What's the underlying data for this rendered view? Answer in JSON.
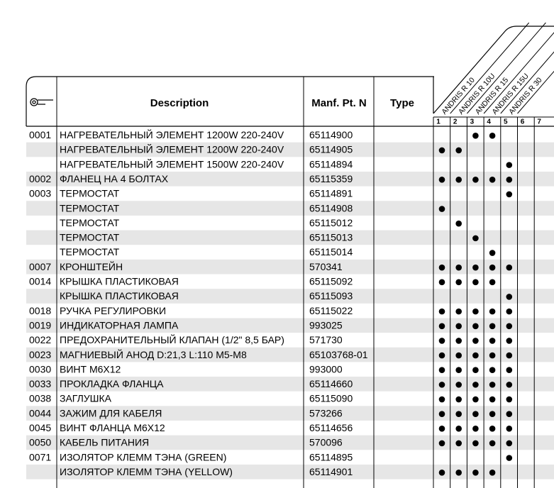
{
  "header": {
    "description": "Description",
    "part_no": "Manf. Pt. N",
    "type": "Type",
    "models": [
      "ANDRIS R 10",
      "ANDRIS R 10U",
      "ANDRIS R 15",
      "ANDRIS R 15U",
      "ANDRIS R 30"
    ],
    "columns": [
      "1",
      "2",
      "3",
      "4",
      "5",
      "6",
      "7"
    ]
  },
  "rows": [
    {
      "code": "0001",
      "description": "НАГРЕВАТЕЛЬНЫЙ ЭЛЕМЕНТ 1200W 220-240V",
      "part_no": "65114900",
      "fits": [
        false,
        false,
        true,
        true,
        false,
        false,
        false
      ]
    },
    {
      "description": "НАГРЕВАТЕЛЬНЫЙ ЭЛЕМЕНТ 1200W 220-240V",
      "part_no": "65114905",
      "fits": [
        true,
        true,
        false,
        false,
        false,
        false,
        false
      ]
    },
    {
      "description": "НАГРЕВАТЕЛЬНЫЙ ЭЛЕМЕНТ 1500W 220-240V",
      "part_no": "65114894",
      "fits": [
        false,
        false,
        false,
        false,
        true,
        false,
        false
      ]
    },
    {
      "code": "0002",
      "description": "ФЛАНЕЦ НА 4 БОЛТАХ",
      "part_no": "65115359",
      "fits": [
        true,
        true,
        true,
        true,
        true,
        false,
        false
      ]
    },
    {
      "code": "0003",
      "description": "ТЕРМОСТАТ",
      "part_no": "65114891",
      "fits": [
        false,
        false,
        false,
        false,
        true,
        false,
        false
      ]
    },
    {
      "description": "ТЕРМОСТАТ",
      "part_no": "65114908",
      "fits": [
        true,
        false,
        false,
        false,
        false,
        false,
        false
      ]
    },
    {
      "description": "ТЕРМОСТАТ",
      "part_no": "65115012",
      "fits": [
        false,
        true,
        false,
        false,
        false,
        false,
        false
      ]
    },
    {
      "description": "ТЕРМОСТАТ",
      "part_no": "65115013",
      "fits": [
        false,
        false,
        true,
        false,
        false,
        false,
        false
      ]
    },
    {
      "description": "ТЕРМОСТАТ",
      "part_no": "65115014",
      "fits": [
        false,
        false,
        false,
        true,
        false,
        false,
        false
      ]
    },
    {
      "code": "0007",
      "description": "КРОНШТЕЙН",
      "part_no": "570341",
      "fits": [
        true,
        true,
        true,
        true,
        true,
        false,
        false
      ]
    },
    {
      "code": "0014",
      "description": "КРЫШКА ПЛАСТИКОВАЯ",
      "part_no": "65115092",
      "fits": [
        true,
        true,
        true,
        true,
        false,
        false,
        false
      ]
    },
    {
      "description": "КРЫШКА ПЛАСТИКОВАЯ",
      "part_no": "65115093",
      "fits": [
        false,
        false,
        false,
        false,
        true,
        false,
        false
      ]
    },
    {
      "code": "0018",
      "description": "РУЧКА РЕГУЛИРОВКИ",
      "part_no": "65115022",
      "fits": [
        true,
        true,
        true,
        true,
        true,
        false,
        false
      ]
    },
    {
      "code": "0019",
      "description": "ИНДИКАТОРНАЯ ЛАМПА",
      "part_no": "993025",
      "fits": [
        true,
        true,
        true,
        true,
        true,
        false,
        false
      ]
    },
    {
      "code": "0022",
      "description": "ПРЕДОХРАНИТЕЛЬНЫЙ КЛАПАН (1/2\" 8,5 БАР)",
      "part_no": "571730",
      "fits": [
        true,
        true,
        true,
        true,
        true,
        false,
        false
      ]
    },
    {
      "code": "0023",
      "description": "МАГНИЕВЫЙ АНОД D:21,3 L:110 M5-M8",
      "part_no": "65103768-01",
      "fits": [
        true,
        true,
        true,
        true,
        true,
        false,
        false
      ]
    },
    {
      "code": "0030",
      "description": "ВИНТ M6X12",
      "part_no": "993000",
      "fits": [
        true,
        true,
        true,
        true,
        true,
        false,
        false
      ]
    },
    {
      "code": "0033",
      "description": "ПРОКЛАДКА ФЛАНЦА",
      "part_no": "65114660",
      "fits": [
        true,
        true,
        true,
        true,
        true,
        false,
        false
      ]
    },
    {
      "code": "0038",
      "description": "ЗАГЛУШКА",
      "part_no": "65115090",
      "fits": [
        true,
        true,
        true,
        true,
        true,
        false,
        false
      ]
    },
    {
      "code": "0044",
      "description": "ЗАЖИМ ДЛЯ КАБЕЛЯ",
      "part_no": "573266",
      "fits": [
        true,
        true,
        true,
        true,
        true,
        false,
        false
      ]
    },
    {
      "code": "0045",
      "description": "ВИНТ ФЛАНЦА M6X12",
      "part_no": "65114656",
      "fits": [
        true,
        true,
        true,
        true,
        true,
        false,
        false
      ]
    },
    {
      "code": "0050",
      "description": "КАБЕЛЬ ПИТАНИЯ",
      "part_no": "570096",
      "fits": [
        true,
        true,
        true,
        true,
        true,
        false,
        false
      ]
    },
    {
      "code": "0071",
      "description": "ИЗОЛЯТОР КЛЕММ ТЭНА (GREEN)",
      "part_no": "65114895",
      "fits": [
        false,
        false,
        false,
        false,
        true,
        false,
        false
      ]
    },
    {
      "description": "ИЗОЛЯТОР КЛЕММ ТЭНА (YELLOW)",
      "part_no": "65114901",
      "fits": [
        true,
        true,
        true,
        true,
        false,
        false,
        false
      ]
    }
  ]
}
